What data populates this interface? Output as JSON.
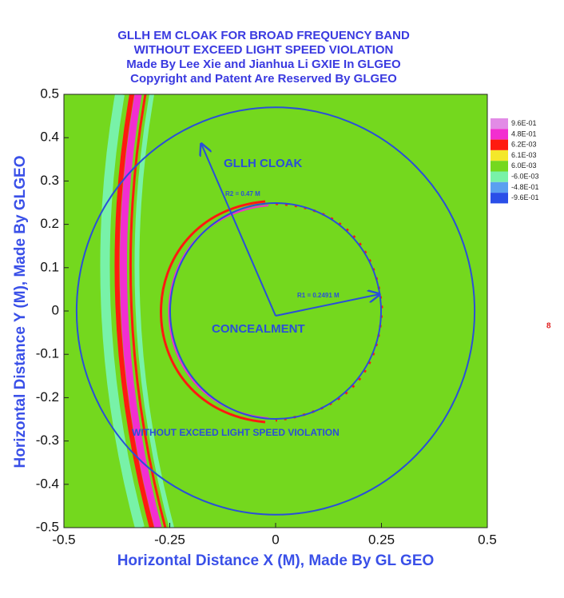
{
  "chart_data": {
    "type": "contour",
    "title_lines": [
      "GLLH EM CLOAK FOR BROAD FREQUENCY BAND",
      "WITHOUT EXCEED LIGHT SPEED VIOLATION",
      "Made By Lee Xie and Jianhua Li GXIE In GLGEO",
      "Copyright and Patent Are Reserved By GLGEO"
    ],
    "x_label": "Horizontal Distance X (M), Made By GL GEO",
    "y_label": "Horizontal Distance Y (M), Made By GLGEO",
    "xlim": [
      -0.5,
      0.5
    ],
    "ylim": [
      -0.5,
      0.5
    ],
    "xticks": [
      -0.5,
      -0.25,
      0,
      0.25,
      0.5
    ],
    "yticks": [
      0.5,
      0.4,
      0.3,
      0.2,
      0.1,
      0,
      -0.1,
      -0.2,
      -0.3,
      -0.4,
      -0.5
    ],
    "radii": [
      0.47,
      0.2491
    ],
    "circle_color": "#2a4fd8",
    "background_color": "#74d81e",
    "colorbar": {
      "levels": [
        {
          "value": 0.96,
          "label": "9.6E-01"
        },
        {
          "value": 0.48,
          "label": "4.8E-01"
        },
        {
          "value": 0.0062,
          "label": "6.2E-03"
        },
        {
          "value": 0.0061,
          "label": "6.1E-03"
        },
        {
          "value": 0.006,
          "label": "6.0E-03"
        },
        {
          "value": -0.006,
          "label": "-6.0E-03"
        },
        {
          "value": -0.48,
          "label": "-4.8E-01"
        },
        {
          "value": -0.96,
          "label": "-9.6E-01"
        }
      ],
      "colors": [
        "#e28be6",
        "#f22ed0",
        "#ff1a10",
        "#f4e82a",
        "#74d81e",
        "#78f2a8",
        "#5aa0f0",
        "#2a4fe8"
      ]
    },
    "annotations": [
      "GLLH CLOAK",
      "R2 = 0.47 M",
      "R1 = 0.2491 M",
      "CONCEALMENT",
      "WITHOUT EXCEED LIGHT SPEED VIOLATION",
      "8"
    ]
  }
}
